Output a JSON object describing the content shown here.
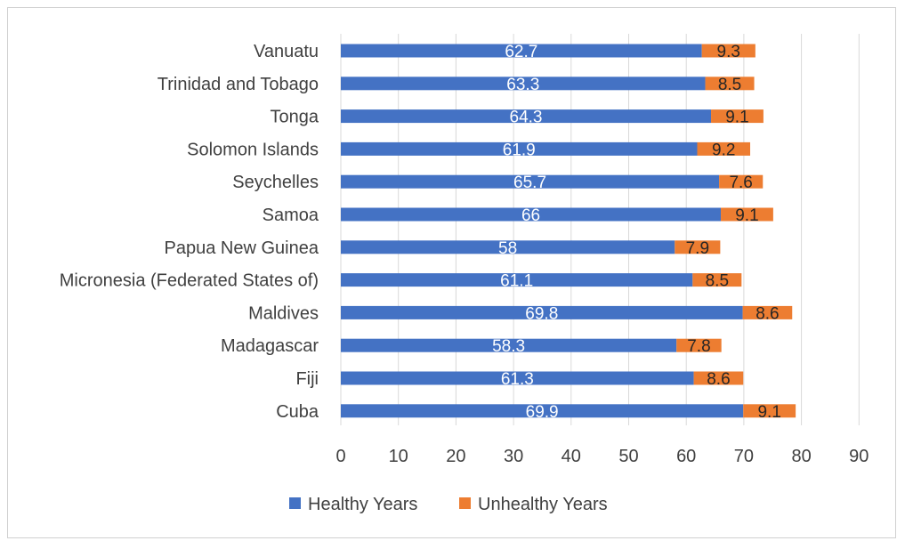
{
  "chart_data": {
    "type": "bar",
    "orientation": "horizontal",
    "stacked": true,
    "categories": [
      "Vanuatu",
      "Trinidad and Tobago",
      "Tonga",
      "Solomon Islands",
      "Seychelles",
      "Samoa",
      "Papua New Guinea",
      "Micronesia (Federated States of)",
      "Maldives",
      "Madagascar",
      "Fiji",
      "Cuba"
    ],
    "series": [
      {
        "name": "Healthy Years",
        "color": "#4472C4",
        "label_color": "#ffffff",
        "values": [
          62.7,
          63.3,
          64.3,
          61.9,
          65.7,
          66,
          58,
          61.1,
          69.8,
          58.3,
          61.3,
          69.9
        ]
      },
      {
        "name": "Unhealthy Years",
        "color": "#ED7D31",
        "label_color": "#262626",
        "values": [
          9.3,
          8.5,
          9.1,
          9.2,
          7.6,
          9.1,
          7.9,
          8.5,
          8.6,
          7.8,
          8.6,
          9.1
        ]
      }
    ],
    "value_labels": [
      [
        "62.7",
        "63.3",
        "64.3",
        "61.9",
        "65.7",
        "66",
        "58",
        "61.1",
        "69.8",
        "58.3",
        "61.3",
        "69.9"
      ],
      [
        "9.3",
        "8.5",
        "9.1",
        "9.2",
        "7.6",
        "9.1",
        "7.9",
        "8.5",
        "8.6",
        "7.8",
        "8.6",
        "9.1"
      ]
    ],
    "x_ticks": [
      "0",
      "10",
      "20",
      "30",
      "40",
      "50",
      "60",
      "70",
      "80",
      "90"
    ],
    "xlim": [
      0,
      90
    ],
    "grid": true,
    "legend_position": "bottom",
    "title": "",
    "xlabel": "",
    "ylabel": ""
  }
}
